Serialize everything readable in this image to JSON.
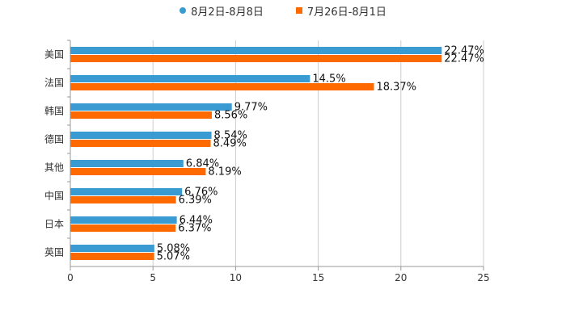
{
  "colors": {
    "series1": "#3a9bd2",
    "series2": "#ff6a00",
    "grid": "#cccccc",
    "axis": "#999999",
    "text": "#333333"
  },
  "legend": {
    "items": [
      {
        "label": "8月2日-8月8日",
        "marker": "circle"
      },
      {
        "label": "7月26日-8月1日",
        "marker": "square"
      }
    ]
  },
  "chart_data": {
    "type": "bar",
    "orientation": "horizontal",
    "title": "",
    "xlabel": "",
    "ylabel": "",
    "categories": [
      "美国",
      "法国",
      "韩国",
      "德国",
      "其他",
      "中国",
      "日本",
      "英国"
    ],
    "series": [
      {
        "name": "8月2日-8月8日",
        "values": [
          22.47,
          14.5,
          9.77,
          8.54,
          6.84,
          6.76,
          6.44,
          5.08
        ],
        "labels": [
          "22.47%",
          "14.5%",
          "9.77%",
          "8.54%",
          "6.84%",
          "6.76%",
          "6.44%",
          "5.08%"
        ]
      },
      {
        "name": "7月26日-8月1日",
        "values": [
          22.47,
          18.37,
          8.56,
          8.49,
          8.19,
          6.39,
          6.37,
          5.07
        ],
        "labels": [
          "22.47%",
          "18.37%",
          "8.56%",
          "8.49%",
          "8.19%",
          "6.39%",
          "6.37%",
          "5.07%"
        ]
      }
    ],
    "xlim": [
      0,
      25
    ],
    "xticks": [
      0,
      5,
      10,
      15,
      20,
      25
    ],
    "xtick_labels": [
      "0",
      "5",
      "10",
      "15",
      "20",
      "25"
    ],
    "grid": true,
    "legend_position": "top-center"
  }
}
